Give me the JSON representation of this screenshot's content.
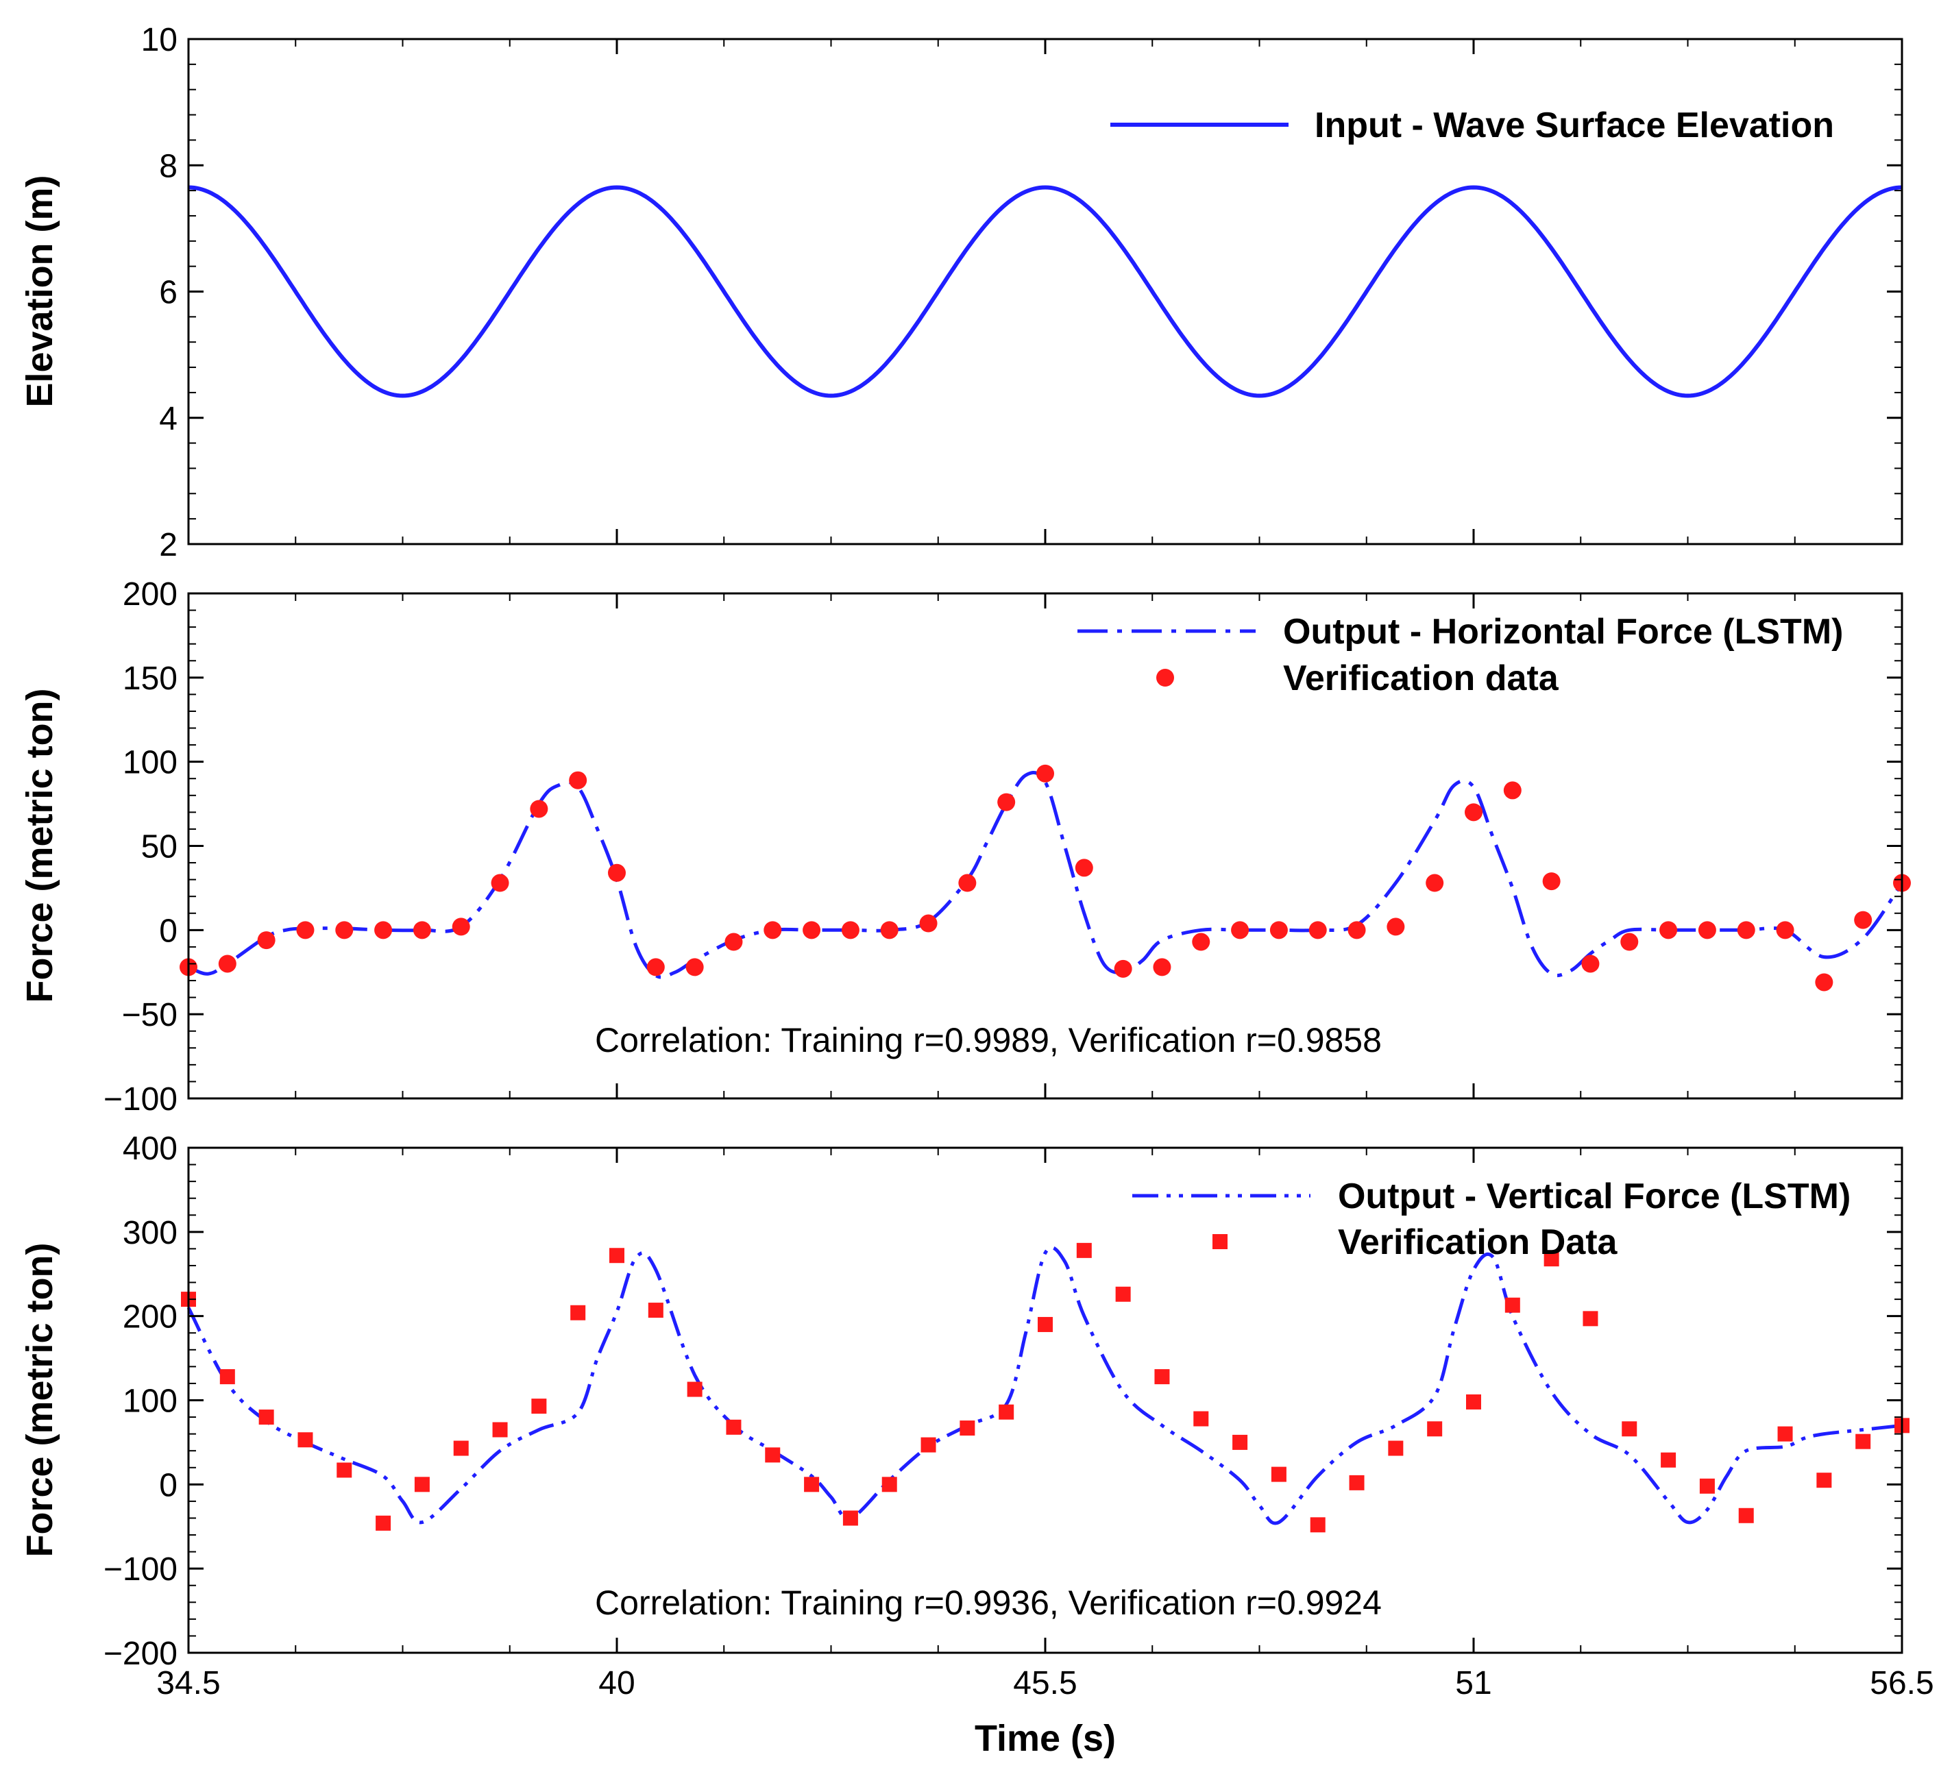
{
  "chart_data": [
    {
      "type": "line",
      "panel": "top",
      "ylabel": "Elevation (m)",
      "xlabel": "",
      "xlim": [
        34.5,
        56.5
      ],
      "ylim": [
        2,
        10
      ],
      "yticks": [
        2,
        4,
        6,
        8,
        10
      ],
      "ytick_labels": [
        "2",
        "4",
        "6",
        "8",
        "10"
      ],
      "grid": false,
      "legend_position": "top-right",
      "series": [
        {
          "name": "Input - Wave Surface Elevation",
          "style": "solid",
          "color": "#1f1fff",
          "model": {
            "kind": "sine",
            "mean": 6.0,
            "amplitude": 1.65,
            "period": 5.5,
            "peak_at": 40.0
          }
        }
      ]
    },
    {
      "type": "line",
      "panel": "middle",
      "ylabel": "Force (metric ton)",
      "xlabel": "",
      "xlim": [
        34.5,
        56.5
      ],
      "ylim": [
        -100,
        200
      ],
      "yticks": [
        -100,
        -50,
        0,
        50,
        100,
        150,
        200
      ],
      "ytick_labels": [
        "−100",
        "−50",
        "0",
        "50",
        "100",
        "150",
        "200"
      ],
      "grid": false,
      "legend_position": "top-right",
      "annotation": "Correlation: Training r=0.9989, Verification r=0.9858",
      "series": [
        {
          "name": "Output - Horizontal Force (LSTM)",
          "style": "dash-dot",
          "color": "#1f1fff",
          "x": [
            34.5,
            34.75,
            35.0,
            35.5,
            35.75,
            36.0,
            36.5,
            37.0,
            37.5,
            38.0,
            38.5,
            39.0,
            39.25,
            39.5,
            39.75,
            40.0,
            40.25,
            40.5,
            40.75,
            41.0,
            41.5,
            42.0,
            42.5,
            43.0,
            43.5,
            44.0,
            44.5,
            44.75,
            45.0,
            45.25,
            45.5,
            45.75,
            46.0,
            46.25,
            46.5,
            46.75,
            47.0,
            47.5,
            48.0,
            48.5,
            49.0,
            49.5,
            50.0,
            50.5,
            50.75,
            51.0,
            51.25,
            51.5,
            51.75,
            52.0,
            52.25,
            52.5,
            52.75,
            53.0,
            53.5,
            54.0,
            54.5,
            55.0,
            55.5,
            56.0,
            56.5
          ],
          "y": [
            -22,
            -26,
            -20,
            -4,
            0,
            1,
            1,
            0,
            0,
            2,
            30,
            75,
            86,
            85,
            60,
            30,
            -10,
            -27,
            -25,
            -18,
            -6,
            0,
            0,
            0,
            0,
            5,
            30,
            52,
            75,
            92,
            88,
            50,
            10,
            -20,
            -25,
            -18,
            -6,
            0,
            0,
            0,
            0,
            3,
            28,
            65,
            86,
            85,
            55,
            25,
            -10,
            -26,
            -24,
            -14,
            -6,
            0,
            0,
            0,
            0,
            0,
            -16,
            -5,
            28
          ]
        },
        {
          "name": "Verification data",
          "style": "circle-markers",
          "color": "#ff1a1a",
          "x": [
            34.5,
            35.0,
            35.5,
            36.0,
            36.5,
            37.0,
            37.5,
            38.0,
            38.5,
            39.0,
            39.5,
            40.0,
            40.5,
            41.0,
            41.5,
            42.0,
            42.5,
            43.0,
            43.5,
            44.0,
            44.5,
            45.0,
            45.5,
            46.0,
            46.5,
            47.0,
            47.5,
            48.0,
            48.5,
            49.0,
            49.5,
            50.0,
            50.5,
            51.0,
            51.5,
            52.0,
            52.5,
            53.0,
            53.5,
            54.0,
            54.5,
            55.0,
            55.5,
            56.0,
            56.5
          ],
          "y": [
            -22,
            -20,
            -6,
            0,
            0,
            0,
            0,
            2,
            28,
            72,
            89,
            34,
            -22,
            -22,
            -7,
            0,
            0,
            0,
            0,
            4,
            28,
            76,
            93,
            37,
            -23,
            -22,
            -7,
            0,
            0,
            0,
            0,
            2,
            28,
            70,
            83,
            29,
            -20,
            -7,
            0,
            0,
            0,
            0,
            -31,
            6,
            28
          ]
        }
      ]
    },
    {
      "type": "line",
      "panel": "bottom",
      "ylabel": "Force (metric ton)",
      "xlabel": "Time (s)",
      "xlim": [
        34.5,
        56.5
      ],
      "ylim": [
        -200,
        400
      ],
      "xticks": [
        34.5,
        40,
        45.5,
        51,
        56.5
      ],
      "xtick_labels": [
        "34.5",
        "40",
        "45.5",
        "51",
        "56.5"
      ],
      "yticks": [
        -200,
        -100,
        0,
        100,
        200,
        300,
        400
      ],
      "ytick_labels": [
        "−200",
        "−100",
        "0",
        "100",
        "200",
        "300",
        "400"
      ],
      "grid": false,
      "legend_position": "top-right",
      "annotation": "Correlation: Training r=0.9936, Verification r=0.9924",
      "series": [
        {
          "name": "Output - Vertical Force (LSTM)",
          "style": "dash-dot-dot",
          "color": "#1f1fff",
          "x": [
            34.5,
            35.0,
            35.5,
            36.0,
            36.5,
            37.0,
            37.25,
            37.5,
            38.0,
            38.5,
            39.0,
            39.5,
            39.75,
            40.0,
            40.25,
            40.5,
            41.0,
            41.5,
            42.0,
            42.5,
            42.75,
            43.0,
            43.5,
            44.0,
            44.5,
            45.0,
            45.25,
            45.5,
            45.75,
            46.0,
            46.5,
            47.0,
            47.5,
            48.0,
            48.25,
            48.5,
            49.0,
            49.5,
            50.0,
            50.5,
            50.75,
            51.0,
            51.25,
            51.5,
            52.0,
            52.5,
            53.0,
            53.5,
            53.75,
            54.0,
            54.25,
            54.5,
            55.0,
            55.25,
            55.5,
            56.0,
            56.5
          ],
          "y": [
            210,
            120,
            75,
            50,
            30,
            10,
            -20,
            -45,
            -5,
            40,
            65,
            85,
            150,
            205,
            270,
            255,
            130,
            70,
            40,
            10,
            -15,
            -40,
            5,
            45,
            70,
            95,
            180,
            275,
            265,
            200,
            110,
            70,
            40,
            5,
            -25,
            -45,
            10,
            50,
            70,
            105,
            185,
            255,
            270,
            200,
            110,
            60,
            35,
            -20,
            -45,
            -30,
            10,
            40,
            45,
            55,
            60,
            65,
            70
          ]
        },
        {
          "name": "Verification Data",
          "style": "square-markers",
          "color": "#ff1a1a",
          "x": [
            34.5,
            35.0,
            35.5,
            36.0,
            36.5,
            37.0,
            37.5,
            38.0,
            38.5,
            39.0,
            39.5,
            40.0,
            40.5,
            41.0,
            41.5,
            42.0,
            42.5,
            43.0,
            43.5,
            44.0,
            44.5,
            45.0,
            45.5,
            46.0,
            46.5,
            47.0,
            47.5,
            48.0,
            48.5,
            49.0,
            49.5,
            50.0,
            50.5,
            51.0,
            51.5,
            52.0,
            52.5,
            53.0,
            53.5,
            54.0,
            54.5,
            55.0,
            55.5,
            56.0,
            56.5
          ],
          "y": [
            220,
            128,
            80,
            53,
            17,
            -46,
            0,
            43,
            65,
            93,
            204,
            272,
            207,
            113,
            68,
            35,
            0,
            -40,
            0,
            47,
            67,
            86,
            190,
            278,
            226,
            128,
            78,
            50,
            12,
            -48,
            2,
            43,
            66,
            98,
            213,
            268,
            197,
            66,
            29,
            -2,
            -37,
            60,
            5,
            51,
            70
          ]
        }
      ]
    }
  ]
}
